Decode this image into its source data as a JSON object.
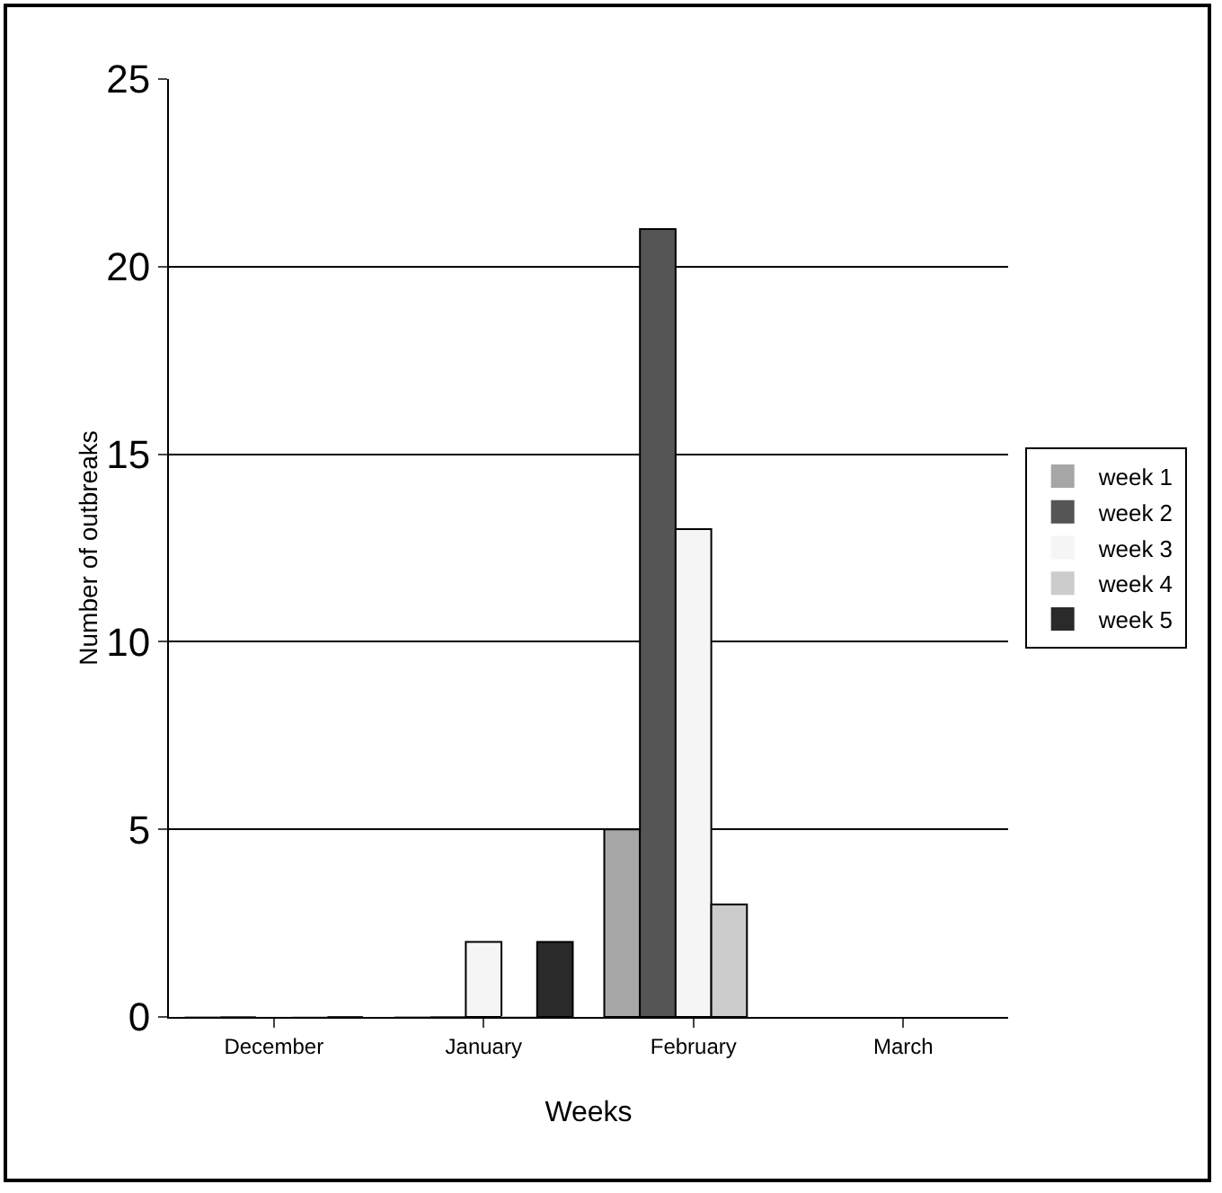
{
  "chart_data": {
    "type": "bar",
    "xlabel": "Weeks",
    "ylabel": "Number of outbreaks",
    "categories": [
      "December",
      "January",
      "February",
      "March"
    ],
    "series": [
      {
        "name": "week 1",
        "color": "#a6a6a6",
        "values": [
          0,
          0,
          5,
          null
        ]
      },
      {
        "name": "week 2",
        "color": "#555555",
        "values": [
          0,
          0,
          21,
          null
        ]
      },
      {
        "name": "week 3",
        "color": "#f5f5f5",
        "values": [
          0,
          2,
          13,
          null
        ]
      },
      {
        "name": "week 4",
        "color": "#cccccc",
        "values": [
          0,
          0,
          3,
          null
        ]
      },
      {
        "name": "week 5",
        "color": "#2a2a2a",
        "values": [
          0,
          2,
          null,
          null
        ]
      }
    ],
    "ylim": [
      0,
      25
    ],
    "yticks": [
      0,
      5,
      10,
      15,
      20,
      25
    ],
    "grid": "y",
    "legend": "right"
  }
}
